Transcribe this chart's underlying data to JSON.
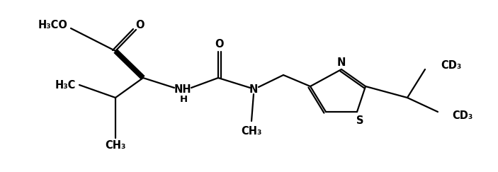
{
  "figsize": [
    7.03,
    2.43
  ],
  "dpi": 100,
  "bg_color": "#ffffff",
  "line_color": "#000000",
  "line_width": 1.6,
  "font_size": 10.5,
  "font_family": "Arial",
  "font_weight": "bold",
  "xlim": [
    0,
    703
  ],
  "ylim": [
    0,
    243
  ],
  "labels": {
    "h3co": "H₃CO",
    "o_ester": "O",
    "h3c": "H₃C",
    "ch3_iso": "CH₃",
    "nh": "NH",
    "h_nh": "H",
    "o_amide": "O",
    "n_amide": "N",
    "ch3_n": "CH₃",
    "n_thiaz": "N",
    "s_thiaz": "S",
    "cd3_top": "CD₃",
    "cd3_bot": "CD₃"
  }
}
